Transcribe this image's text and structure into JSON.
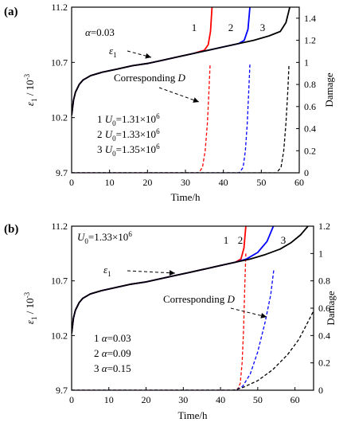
{
  "chart_data": [
    {
      "panel_label": "(a)",
      "type": "line",
      "xlabel": "Time/h",
      "ylabel_left": "ε1 / 10^-3",
      "ylabel_right": "Damage",
      "xlim": [
        0,
        60
      ],
      "ylim_left": [
        9.7,
        11.2
      ],
      "ylim_right": [
        0,
        1.5
      ],
      "xticks": [
        "0",
        "10",
        "20",
        "30",
        "40",
        "50",
        "60"
      ],
      "yticks_left": [
        "9.7",
        "10.2",
        "10.7",
        "11.2"
      ],
      "yticks_right": [
        "0",
        "0.2",
        "0.4",
        "0.6",
        "0.8",
        "1",
        "1.2",
        "1.4"
      ],
      "grid": false,
      "annotations": {
        "param": "α=0.03",
        "strain_label": "ε1",
        "damage_label": "Corresponding D",
        "curve_numbers": [
          "1",
          "2",
          "3"
        ],
        "legend_lines": [
          "1 U0=1.31×10^6",
          "2 U0=1.33×10^6",
          "3 U0=1.35×10^6"
        ]
      },
      "series": [
        {
          "name": "1",
          "color": "#ff0000",
          "axis": "left",
          "style": "solid",
          "x": [
            0,
            0.5,
            1,
            2,
            3,
            5,
            8,
            12,
            16,
            20,
            24,
            28,
            32,
            35,
            36,
            36.6,
            37
          ],
          "y": [
            10.22,
            10.36,
            10.43,
            10.5,
            10.54,
            10.58,
            10.61,
            10.64,
            10.67,
            10.69,
            10.72,
            10.75,
            10.78,
            10.81,
            10.86,
            10.98,
            11.2
          ]
        },
        {
          "name": "2",
          "color": "#0000ff",
          "axis": "left",
          "style": "solid",
          "x": [
            0,
            0.5,
            1,
            2,
            3,
            5,
            8,
            12,
            16,
            20,
            24,
            28,
            32,
            36,
            40,
            44,
            45.5,
            46.5,
            47
          ],
          "y": [
            10.22,
            10.36,
            10.43,
            10.5,
            10.54,
            10.58,
            10.61,
            10.64,
            10.67,
            10.69,
            10.72,
            10.75,
            10.78,
            10.81,
            10.84,
            10.87,
            10.9,
            11.0,
            11.2
          ]
        },
        {
          "name": "3",
          "color": "#000000",
          "axis": "left",
          "style": "solid",
          "x": [
            0,
            0.5,
            1,
            2,
            3,
            5,
            8,
            12,
            16,
            20,
            24,
            28,
            32,
            36,
            40,
            44,
            48,
            52,
            55,
            56.5,
            57.5
          ],
          "y": [
            10.22,
            10.36,
            10.43,
            10.5,
            10.54,
            10.58,
            10.61,
            10.64,
            10.67,
            10.69,
            10.72,
            10.75,
            10.78,
            10.81,
            10.84,
            10.87,
            10.9,
            10.94,
            10.98,
            11.06,
            11.2
          ]
        },
        {
          "name": "1",
          "color": "#ff0000",
          "axis": "right",
          "style": "dashed",
          "x": [
            0,
            33.5,
            34.5,
            35.2,
            35.8,
            36.2,
            36.5
          ],
          "y": [
            0,
            0,
            0.05,
            0.2,
            0.45,
            0.75,
            0.98
          ]
        },
        {
          "name": "2",
          "color": "#0000ff",
          "axis": "right",
          "style": "dashed",
          "x": [
            0,
            44.2,
            45.2,
            45.8,
            46.3,
            46.7,
            47
          ],
          "y": [
            0,
            0,
            0.05,
            0.2,
            0.45,
            0.75,
            0.98
          ]
        },
        {
          "name": "3",
          "color": "#000000",
          "axis": "right",
          "style": "dashed",
          "x": [
            0,
            54,
            55.2,
            55.9,
            56.5,
            57,
            57.3
          ],
          "y": [
            0,
            0,
            0.05,
            0.2,
            0.45,
            0.75,
            0.98
          ]
        }
      ]
    },
    {
      "panel_label": "(b)",
      "type": "line",
      "xlabel": "Time/h",
      "ylabel_left": "ε1 / 10^-3",
      "ylabel_right": "Damage",
      "xlim": [
        0,
        65
      ],
      "ylim_left": [
        9.7,
        11.2
      ],
      "ylim_right": [
        0,
        1.2
      ],
      "xticks": [
        "0",
        "10",
        "20",
        "30",
        "40",
        "50",
        "60"
      ],
      "yticks_left": [
        "9.7",
        "10.2",
        "10.7",
        "11.2"
      ],
      "yticks_right": [
        "0",
        "0.2",
        "0.4",
        "0.6",
        "0.8",
        "1",
        "1.2"
      ],
      "grid": false,
      "annotations": {
        "param": "U0=1.33×10^6",
        "strain_label": "ε1",
        "damage_label": "Corresponding D",
        "curve_numbers": [
          "1",
          "2",
          "3"
        ],
        "legend_lines": [
          "1 α=0.03",
          "2 α=0.09",
          "3 α=0.15"
        ]
      },
      "series": [
        {
          "name": "1",
          "color": "#ff0000",
          "axis": "left",
          "style": "solid",
          "x": [
            0,
            0.5,
            1,
            2,
            3,
            5,
            8,
            12,
            16,
            20,
            24,
            28,
            32,
            36,
            40,
            44,
            45.5,
            46.3,
            46.8
          ],
          "y": [
            10.22,
            10.36,
            10.43,
            10.5,
            10.54,
            10.58,
            10.61,
            10.64,
            10.67,
            10.69,
            10.72,
            10.75,
            10.78,
            10.81,
            10.84,
            10.87,
            10.9,
            11.0,
            11.2
          ]
        },
        {
          "name": "2",
          "color": "#0000ff",
          "axis": "left",
          "style": "solid",
          "x": [
            0,
            0.5,
            1,
            2,
            3,
            5,
            8,
            12,
            16,
            20,
            24,
            28,
            32,
            36,
            40,
            44,
            47,
            50,
            52.5,
            54.2
          ],
          "y": [
            10.22,
            10.36,
            10.43,
            10.5,
            10.54,
            10.58,
            10.61,
            10.64,
            10.67,
            10.69,
            10.72,
            10.75,
            10.78,
            10.81,
            10.84,
            10.87,
            10.9,
            10.96,
            11.06,
            11.2
          ]
        },
        {
          "name": "3",
          "color": "#000000",
          "axis": "left",
          "style": "solid",
          "x": [
            0,
            0.5,
            1,
            2,
            3,
            5,
            8,
            12,
            16,
            20,
            24,
            28,
            32,
            36,
            40,
            44,
            48,
            52,
            56,
            59,
            61.5,
            63.5
          ],
          "y": [
            10.22,
            10.36,
            10.43,
            10.5,
            10.54,
            10.58,
            10.61,
            10.64,
            10.67,
            10.69,
            10.72,
            10.75,
            10.78,
            10.81,
            10.84,
            10.87,
            10.9,
            10.94,
            10.99,
            11.05,
            11.12,
            11.2
          ]
        },
        {
          "name": "1",
          "color": "#ff0000",
          "axis": "right",
          "style": "dashed",
          "x": [
            0,
            44.5,
            45.3,
            45.8,
            46.2,
            46.5,
            46.8
          ],
          "y": [
            0,
            0,
            0.05,
            0.2,
            0.45,
            0.75,
            1.0
          ]
        },
        {
          "name": "2",
          "color": "#0000ff",
          "axis": "right",
          "style": "dashed",
          "x": [
            0,
            44,
            46,
            48,
            50,
            52,
            53.5,
            54.3
          ],
          "y": [
            0,
            0,
            0.03,
            0.12,
            0.28,
            0.5,
            0.7,
            0.88
          ]
        },
        {
          "name": "3",
          "color": "#000000",
          "axis": "right",
          "style": "dashed",
          "x": [
            0,
            43.5,
            46,
            50,
            54,
            58,
            61,
            63.5,
            65
          ],
          "y": [
            0,
            0,
            0.02,
            0.07,
            0.15,
            0.26,
            0.37,
            0.5,
            0.58
          ]
        }
      ]
    }
  ]
}
